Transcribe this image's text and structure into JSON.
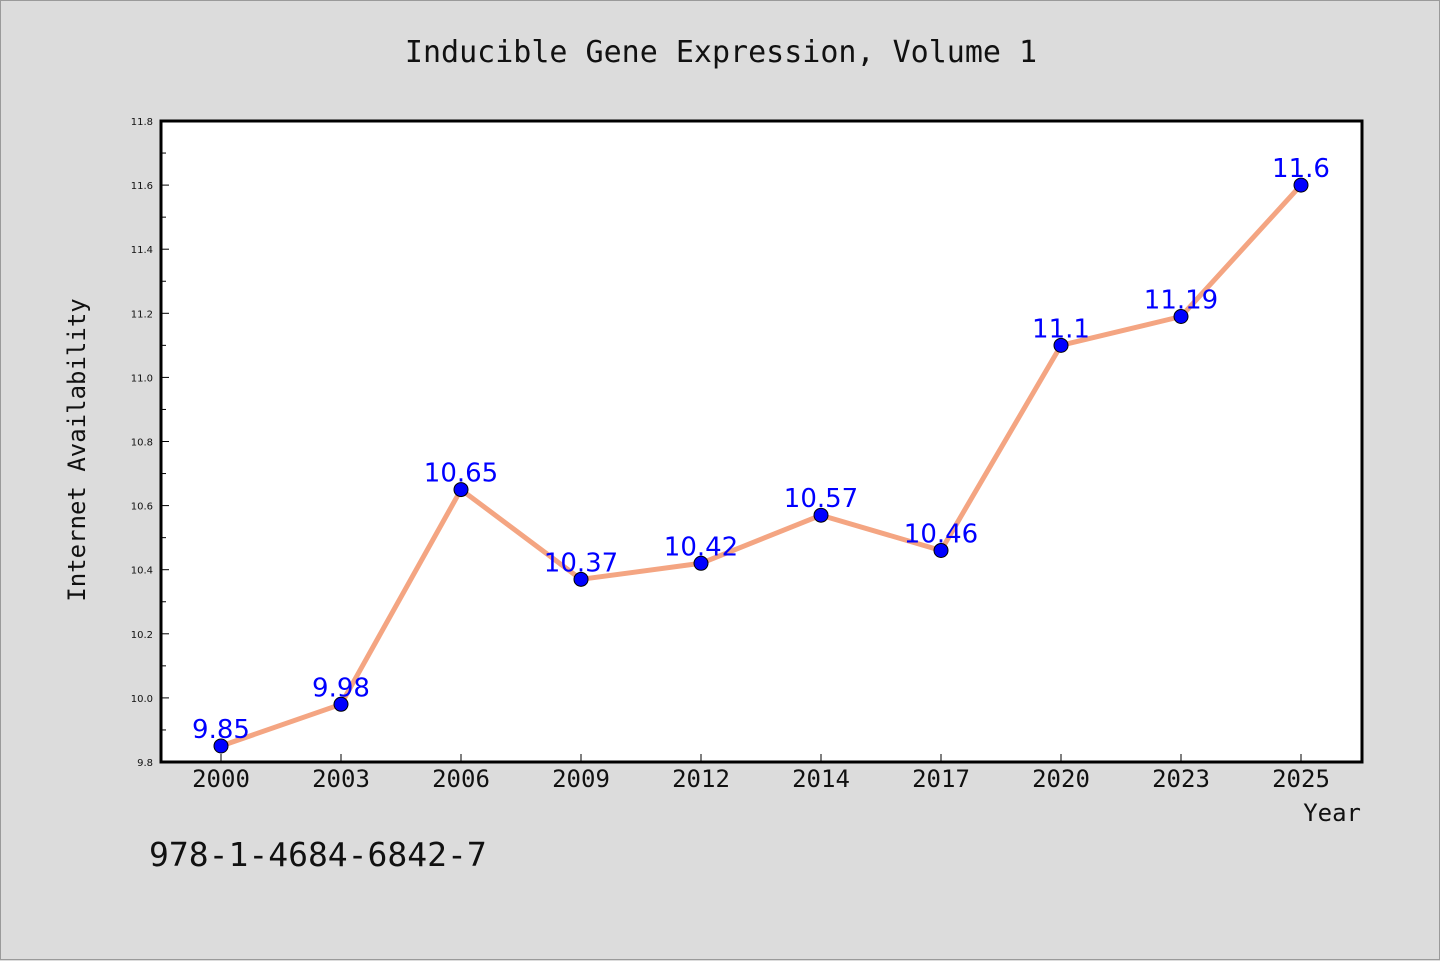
{
  "page": {
    "title": "Inducible Gene Expression, Volume 1",
    "isbn": "978-1-4684-6842-7"
  },
  "chart_data": {
    "type": "line",
    "title": "Inducible Gene Expression, Volume 1",
    "xlabel": "Year",
    "ylabel": "Internet Availability",
    "categories": [
      "2000",
      "2003",
      "2006",
      "2009",
      "2012",
      "2014",
      "2017",
      "2020",
      "2023",
      "2025"
    ],
    "series": [
      {
        "values": [
          9.85,
          9.98,
          10.65,
          10.37,
          10.42,
          10.57,
          10.46,
          11.1,
          11.19,
          11.6
        ]
      }
    ],
    "data_labels": [
      "9.85",
      "9.98",
      "10.65",
      "10.37",
      "10.42",
      "10.57",
      "10.46",
      "11.1",
      "11.19",
      "11.6"
    ],
    "ylim": [
      9.8,
      11.8
    ],
    "yticks": [
      "9.8",
      "10.0",
      "10.2",
      "10.4",
      "10.6",
      "10.8",
      "11.0",
      "11.2",
      "11.4",
      "11.6",
      "11.8"
    ],
    "grid": false,
    "colors": {
      "line": "#f4a582",
      "marker": "#0000ff",
      "label": "#0000ff",
      "background": "#dcdcdc",
      "plot_area": "#ffffff"
    }
  }
}
